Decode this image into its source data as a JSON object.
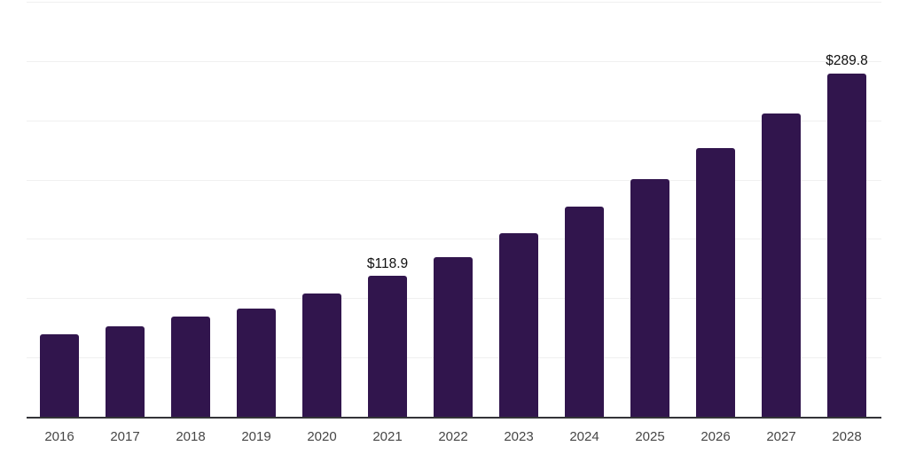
{
  "chart_data": {
    "type": "bar",
    "title": "",
    "xlabel": "",
    "ylabel": "",
    "categories": [
      "2016",
      "2017",
      "2018",
      "2019",
      "2020",
      "2021",
      "2022",
      "2023",
      "2024",
      "2025",
      "2026",
      "2027",
      "2028"
    ],
    "values": [
      69.7,
      76.6,
      84.8,
      91.5,
      104.2,
      118.9,
      134.3,
      154.9,
      177.3,
      200.4,
      226.3,
      256.1,
      289.8
    ],
    "value_labels": [
      {
        "index": 5,
        "text": "$118.9"
      },
      {
        "index": 12,
        "text": "$289.8"
      }
    ],
    "ylim": [
      0,
      350
    ],
    "gridline_step": 50,
    "grid": true,
    "legend": "none",
    "colors": {
      "bar": "#31154d",
      "axis_line": "#343438",
      "gridline": "#f0f0f0",
      "value_label": "#101010",
      "tick_label": "#464646",
      "background": "#ffffff"
    }
  }
}
